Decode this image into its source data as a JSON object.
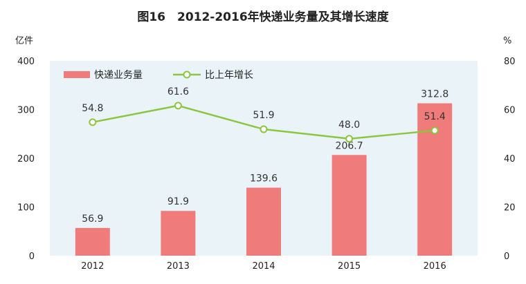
{
  "chart_data": {
    "type": "bar+line",
    "title": "图16　2012-2016年快递业务量及其增长速度",
    "categories": [
      "2012",
      "2013",
      "2014",
      "2015",
      "2016"
    ],
    "series": [
      {
        "name": "快递业务量",
        "type": "bar",
        "axis": "left",
        "values": [
          56.9,
          91.9,
          139.6,
          206.7,
          312.8
        ],
        "labels": [
          "56.9",
          "91.9",
          "139.6",
          "206.7",
          "312.8"
        ],
        "color": "#f07b7b"
      },
      {
        "name": "比上年增长",
        "type": "line",
        "axis": "right",
        "values": [
          54.8,
          61.6,
          51.9,
          48.0,
          51.4
        ],
        "labels": [
          "54.8",
          "61.6",
          "51.9",
          "48.0",
          "51.4"
        ],
        "color": "#8cc63e"
      }
    ],
    "y_left": {
      "unit": "亿件",
      "range": [
        0,
        400
      ],
      "ticks": [
        0,
        100,
        200,
        300,
        400
      ],
      "tick_labels": [
        "0",
        "100",
        "200",
        "300",
        "400"
      ]
    },
    "y_right": {
      "unit": "%",
      "range": [
        0,
        80
      ],
      "ticks": [
        0,
        20,
        40,
        60,
        80
      ],
      "tick_labels": [
        "0",
        "20",
        "40",
        "60",
        "80"
      ]
    },
    "legend": "top-left",
    "grid": false,
    "plot_background": "#eaf4f8"
  }
}
